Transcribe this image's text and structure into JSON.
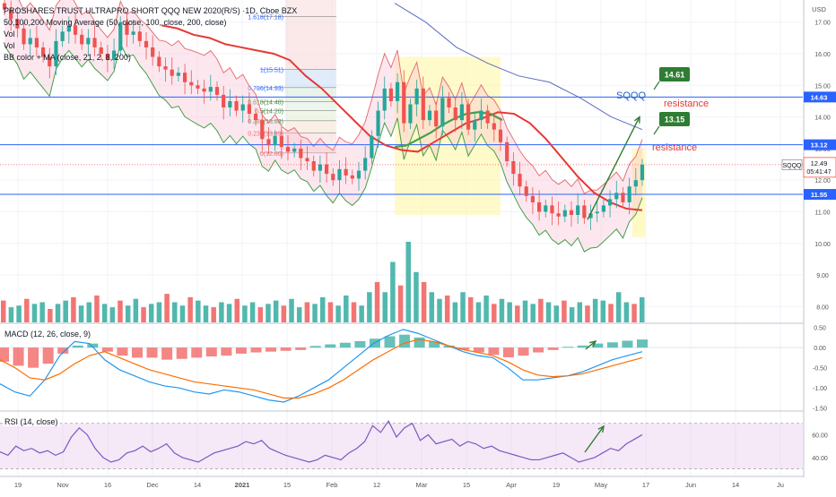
{
  "header": {
    "title": "PROSHARES TRUST ULTRAPRO SHORT QQQ NEW 2020(R/S) ·1D, Cboe BZX",
    "indicators": [
      "50,100,200 Moving Average (50, close, 100, close, 200, close)",
      "Vol",
      "Vol",
      "BB color + MA (close, 21, 2, 8, 200)"
    ],
    "currency": "USD"
  },
  "annotations": {
    "ticker_label": "SQQQ",
    "resistance_1_value": "14.61",
    "resistance_1_label": "resistance",
    "resistance_2_value": "13.15",
    "resistance_2_label": "resistance",
    "symbol_tag": "SQQQ",
    "last_price": "12.49",
    "countdown": "05:41:47",
    "hline_1_value": "14.63",
    "hline_2_value": "13.12",
    "hline_3_value": "11.55"
  },
  "fib_levels": [
    {
      "label": "1.618(17.18)",
      "price": 17.18
    },
    {
      "label": "1(15.51)",
      "price": 15.51
    },
    {
      "label": "0.786(14.93)",
      "price": 14.93
    },
    {
      "label": "0.618(14.48)",
      "price": 14.48
    },
    {
      "label": "0.5(14.20)",
      "price": 14.2
    },
    {
      "label": "0.382(13.88)",
      "price": 13.88
    },
    {
      "label": "0.236(13.49)",
      "price": 13.49
    },
    {
      "label": "0(12.86)",
      "price": 12.86
    }
  ],
  "panes": {
    "macd_label": "MACD (12, 26, close, 9)",
    "rsi_label": "RSI (14, close)"
  },
  "chart_data": {
    "type": "candlestick",
    "x_ticks": [
      "19",
      "Nov",
      "16",
      "Dec",
      "14",
      "2021",
      "15",
      "Feb",
      "12",
      "Mar",
      "15",
      "Apr",
      "19",
      "May",
      "17",
      "Jun",
      "14",
      "Ju"
    ],
    "price_axis_ticks": [
      "17.00",
      "16.00",
      "15.00",
      "14.00",
      "13.00",
      "12.00",
      "11.00",
      "10.00",
      "9.00",
      "8.00"
    ],
    "price_range": [
      7.5,
      17.7
    ],
    "price_close_path": [
      17.4,
      17.1,
      16.8,
      16.3,
      16.5,
      16.2,
      15.9,
      15.6,
      16.4,
      16.7,
      16.9,
      16.6,
      16.3,
      16.5,
      16.2,
      16.0,
      15.8,
      16.1,
      17.0,
      16.6,
      16.7,
      16.4,
      16.2,
      15.9,
      15.6,
      15.5,
      15.3,
      15.4,
      15.1,
      15.0,
      14.9,
      14.8,
      14.95,
      14.7,
      14.3,
      14.5,
      14.2,
      14.4,
      14.1,
      13.9,
      13.3,
      13.1,
      13.4,
      13.05,
      12.9,
      13.0,
      12.7,
      12.6,
      12.3,
      12.5,
      12.2,
      12.0,
      12.35,
      12.15,
      12.05,
      12.3,
      12.7,
      13.4,
      14.2,
      14.9,
      14.5,
      15.1,
      13.8,
      14.4,
      14.9,
      13.9,
      14.2,
      13.7,
      14.6,
      14.3,
      13.9,
      14.4,
      13.6,
      13.9,
      14.2,
      13.8,
      13.6,
      13.2,
      12.6,
      12.2,
      11.8,
      11.5,
      11.3,
      11.0,
      11.2,
      10.95,
      10.85,
      11.05,
      10.9,
      11.2,
      10.8,
      10.95,
      11.0,
      11.2,
      11.4,
      11.6,
      11.3,
      11.8,
      12.0,
      12.49
    ],
    "moving_average_red": [
      16.9,
      16.8,
      16.6,
      16.5,
      16.3,
      16.2,
      16.1,
      16.0,
      15.8,
      15.3,
      14.9,
      14.4,
      13.9,
      13.4,
      13.1,
      12.95,
      12.9,
      13.2,
      13.5,
      13.8,
      13.95,
      14.15,
      14.1,
      13.8,
      13.3,
      12.7,
      12.1,
      11.6,
      11.3,
      11.1,
      11.05
    ],
    "moving_average_green_midband": [
      13.05,
      13.1,
      13.3,
      13.5,
      13.75,
      13.95,
      14.1,
      14.15,
      14.1,
      13.9
    ],
    "moving_average_blue": [
      17.6,
      17.0,
      16.2,
      15.7,
      15.3,
      15.1,
      14.6,
      14.0,
      13.6
    ],
    "volume": [
      6.5,
      4.5,
      5.0,
      7.0,
      5.5,
      6.0,
      4.0,
      5.5,
      6.5,
      7.5,
      5.0,
      6.0,
      8.0,
      5.5,
      4.5,
      6.5,
      5.0,
      7.0,
      4.5,
      5.5,
      6.0,
      8.5,
      6.0,
      5.0,
      7.5,
      6.5,
      5.0,
      4.5,
      6.0,
      5.5,
      7.0,
      5.0,
      6.0,
      4.5,
      5.5,
      6.5,
      5.0,
      7.0,
      4.5,
      6.0,
      5.5,
      7.5,
      6.0,
      5.0,
      8.0,
      6.0,
      5.0,
      9.0,
      12.0,
      9.0,
      18.0,
      11.0,
      24.0,
      15.0,
      12.0,
      9.0,
      7.0,
      8.0,
      6.0,
      9.0,
      7.5,
      6.0,
      8.0,
      5.5,
      7.0,
      6.0,
      5.0,
      6.5,
      5.5,
      7.0,
      6.0,
      5.0,
      6.5,
      4.5,
      6.0,
      5.0,
      7.0,
      6.5,
      5.5,
      9.0,
      6.0,
      5.5,
      7.5
    ],
    "macd": {
      "axis_ticks": [
        "0.50",
        "0.00",
        "-0.50",
        "-1.00",
        "-1.50"
      ],
      "range": [
        -1.55,
        0.58
      ],
      "macd_line": [
        -0.9,
        -1.1,
        -1.2,
        -0.8,
        -0.2,
        0.15,
        0.1,
        -0.3,
        -0.55,
        -0.7,
        -0.85,
        -0.95,
        -1.0,
        -1.1,
        -1.15,
        -1.05,
        -1.1,
        -1.2,
        -1.3,
        -1.35,
        -1.2,
        -1.0,
        -0.8,
        -0.5,
        -0.2,
        0.1,
        0.3,
        0.45,
        0.35,
        0.2,
        0.05,
        -0.1,
        -0.2,
        -0.25,
        -0.5,
        -0.8,
        -0.8,
        -0.75,
        -0.7,
        -0.6,
        -0.45,
        -0.3,
        -0.2,
        -0.1
      ],
      "signal_line": [
        -0.3,
        -0.5,
        -0.75,
        -0.8,
        -0.65,
        -0.4,
        -0.2,
        -0.1,
        -0.25,
        -0.4,
        -0.55,
        -0.65,
        -0.75,
        -0.85,
        -0.9,
        -0.95,
        -1.0,
        -1.05,
        -1.15,
        -1.25,
        -1.25,
        -1.15,
        -1.0,
        -0.8,
        -0.55,
        -0.3,
        -0.1,
        0.1,
        0.2,
        0.15,
        0.05,
        -0.05,
        -0.12,
        -0.2,
        -0.35,
        -0.55,
        -0.68,
        -0.72,
        -0.7,
        -0.65,
        -0.55,
        -0.45,
        -0.35,
        -0.25
      ],
      "histogram": [
        -0.35,
        -0.45,
        -0.5,
        -0.4,
        -0.15,
        0.05,
        0.1,
        -0.1,
        -0.2,
        -0.25,
        -0.25,
        -0.3,
        -0.28,
        -0.25,
        -0.22,
        -0.2,
        -0.15,
        -0.12,
        -0.1,
        -0.08,
        -0.06,
        0.04,
        0.08,
        0.12,
        0.16,
        0.22,
        0.28,
        0.32,
        0.25,
        0.15,
        0.05,
        -0.05,
        -0.12,
        -0.18,
        -0.24,
        -0.2,
        -0.12,
        -0.06,
        0.02,
        0.05,
        0.1,
        0.13,
        0.17,
        0.2
      ]
    },
    "rsi": {
      "axis_ticks": [
        "60.00",
        "40.00"
      ],
      "range": [
        25,
        80
      ],
      "band": [
        30,
        70
      ],
      "values": [
        45,
        42,
        50,
        46,
        48,
        44,
        46,
        42,
        45,
        58,
        66,
        60,
        48,
        40,
        36,
        38,
        44,
        46,
        50,
        45,
        48,
        52,
        44,
        40,
        38,
        36,
        40,
        44,
        46,
        48,
        50,
        54,
        52,
        55,
        48,
        45,
        42,
        40,
        38,
        36,
        38,
        42,
        40,
        38,
        44,
        48,
        54,
        68,
        62,
        72,
        58,
        66,
        70,
        55,
        60,
        52,
        54,
        56,
        50,
        54,
        52,
        48,
        50,
        46,
        44,
        42,
        40,
        38,
        38,
        40,
        42,
        44,
        40,
        36,
        38,
        40,
        44,
        48,
        46,
        52,
        56,
        60
      ]
    }
  }
}
